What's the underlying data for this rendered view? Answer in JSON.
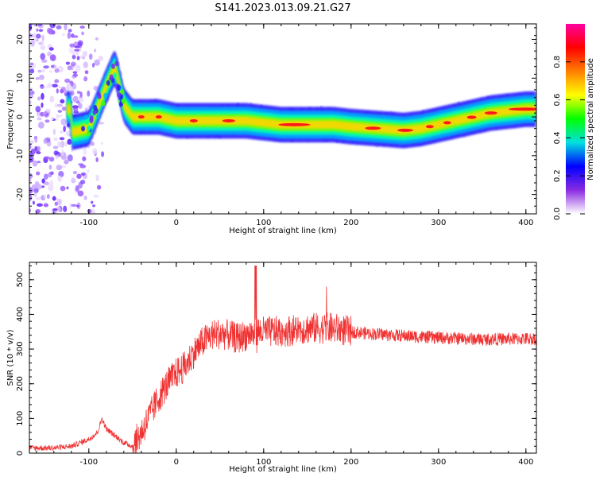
{
  "title": "S141.2023.013.09.21.G27",
  "chart_data": [
    {
      "type": "heatmap",
      "xlabel": "Height of straight line (km)",
      "ylabel": "Frequency (Hz)",
      "xlim": [
        -168,
        412
      ],
      "ylim": [
        -25,
        24
      ],
      "xticks": [
        -100,
        0,
        100,
        200,
        300,
        400
      ],
      "xtick_labels": [
        "-100",
        "0",
        "100",
        "200",
        "300",
        "400"
      ],
      "yticks": [
        20,
        10,
        0,
        -10,
        -20
      ],
      "ytick_labels": [
        "20",
        "10",
        "0",
        "-10",
        "-20"
      ],
      "colorbar": {
        "label": "Normalized spectral amplitude",
        "range": [
          0,
          1
        ],
        "ticks": [
          0.0,
          0.2,
          0.4,
          0.6,
          0.8
        ],
        "tick_labels": [
          "0.0",
          "0.2",
          "0.4",
          "0.6",
          "0.8"
        ],
        "colors": [
          "#ffffff",
          "#8a2be2",
          "#0000ff",
          "#00e0e0",
          "#00ff00",
          "#ffff00",
          "#ff7f00",
          "#ff0000",
          "#ff00a0"
        ]
      },
      "ridge_frequency": [
        [
          -120,
          -4
        ],
        [
          -100,
          -3
        ],
        [
          -80,
          8
        ],
        [
          -70,
          13
        ],
        [
          -60,
          3
        ],
        [
          -50,
          0
        ],
        [
          -40,
          0
        ],
        [
          -20,
          0
        ],
        [
          0,
          -1
        ],
        [
          20,
          -1
        ],
        [
          40,
          -1
        ],
        [
          60,
          -1
        ],
        [
          80,
          -1
        ],
        [
          100,
          -1.5
        ],
        [
          120,
          -2
        ],
        [
          150,
          -2
        ],
        [
          180,
          -2
        ],
        [
          200,
          -2.5
        ],
        [
          230,
          -3
        ],
        [
          260,
          -3.5
        ],
        [
          280,
          -3
        ],
        [
          300,
          -2
        ],
        [
          320,
          -1
        ],
        [
          340,
          0
        ],
        [
          360,
          1
        ],
        [
          380,
          1.5
        ],
        [
          400,
          2
        ],
        [
          412,
          2
        ]
      ]
    },
    {
      "type": "line",
      "xlabel": "Height of straight line (km)",
      "ylabel": "SNR (10 * v/v)",
      "xlim": [
        -168,
        412
      ],
      "ylim": [
        0,
        550
      ],
      "xticks": [
        -100,
        0,
        100,
        200,
        300,
        400
      ],
      "xtick_labels": [
        "-100",
        "0",
        "100",
        "200",
        "300",
        "400"
      ],
      "yticks": [
        0,
        100,
        200,
        300,
        400,
        500
      ],
      "ytick_labels": [
        "0",
        "100",
        "200",
        "300",
        "400",
        "500"
      ],
      "color": "#f03232",
      "series_envelope": [
        [
          -168,
          15
        ],
        [
          -140,
          15
        ],
        [
          -120,
          20
        ],
        [
          -100,
          40
        ],
        [
          -90,
          60
        ],
        [
          -85,
          100
        ],
        [
          -80,
          70
        ],
        [
          -70,
          50
        ],
        [
          -60,
          30
        ],
        [
          -50,
          20
        ],
        [
          -40,
          60
        ],
        [
          -30,
          110
        ],
        [
          -20,
          160
        ],
        [
          -10,
          200
        ],
        [
          0,
          230
        ],
        [
          10,
          250
        ],
        [
          20,
          290
        ],
        [
          30,
          320
        ],
        [
          40,
          340
        ],
        [
          50,
          345
        ],
        [
          60,
          340
        ],
        [
          70,
          330
        ],
        [
          80,
          340
        ],
        [
          90,
          350
        ],
        [
          100,
          350
        ],
        [
          120,
          350
        ],
        [
          150,
          360
        ],
        [
          180,
          360
        ],
        [
          200,
          350
        ],
        [
          220,
          345
        ],
        [
          250,
          340
        ],
        [
          280,
          335
        ],
        [
          300,
          333
        ],
        [
          350,
          328
        ],
        [
          412,
          330
        ]
      ]
    }
  ]
}
